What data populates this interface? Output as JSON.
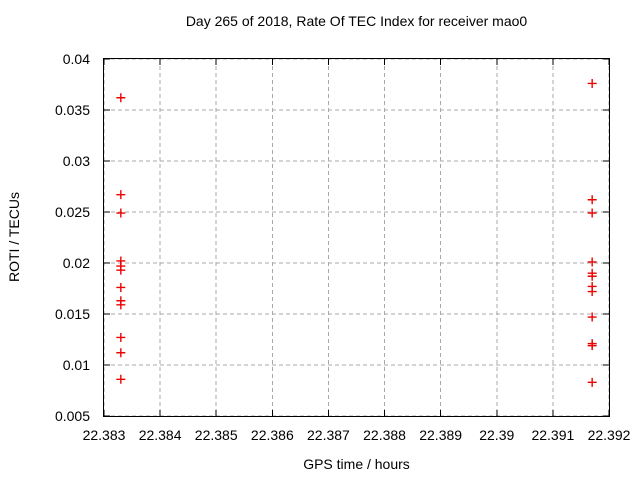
{
  "chart_data": {
    "type": "scatter",
    "title": "Day 265 of 2018, Rate Of TEC Index for receiver mao0",
    "xlabel": "GPS time / hours",
    "ylabel": "ROTI / TECUs",
    "xlim": [
      22.383,
      22.392
    ],
    "ylim": [
      0.005,
      0.04
    ],
    "x_ticks": [
      "22.383",
      "22.384",
      "22.385",
      "22.386",
      "22.387",
      "22.388",
      "22.389",
      "22.39",
      "22.391",
      "22.392"
    ],
    "y_ticks": [
      "0.005",
      "0.01",
      "0.015",
      "0.02",
      "0.025",
      "0.03",
      "0.035",
      "0.04"
    ],
    "grid": true,
    "legend": "none",
    "marker": "plus",
    "marker_color": "#ee0000",
    "series": [
      {
        "name": "roti",
        "points": [
          [
            22.3833,
            0.0362
          ],
          [
            22.3833,
            0.0267
          ],
          [
            22.3833,
            0.0249
          ],
          [
            22.3833,
            0.0202
          ],
          [
            22.3833,
            0.0197
          ],
          [
            22.3833,
            0.0193
          ],
          [
            22.3833,
            0.0176
          ],
          [
            22.3833,
            0.0163
          ],
          [
            22.3833,
            0.0159
          ],
          [
            22.3833,
            0.0127
          ],
          [
            22.3833,
            0.0112
          ],
          [
            22.3833,
            0.0086
          ],
          [
            22.3917,
            0.0376
          ],
          [
            22.3917,
            0.0262
          ],
          [
            22.3917,
            0.0249
          ],
          [
            22.3917,
            0.0201
          ],
          [
            22.3917,
            0.019
          ],
          [
            22.3917,
            0.0187
          ],
          [
            22.3917,
            0.0177
          ],
          [
            22.3917,
            0.0172
          ],
          [
            22.3917,
            0.0147
          ],
          [
            22.3917,
            0.0121
          ],
          [
            22.3917,
            0.0119
          ],
          [
            22.3917,
            0.0083
          ]
        ]
      }
    ]
  }
}
